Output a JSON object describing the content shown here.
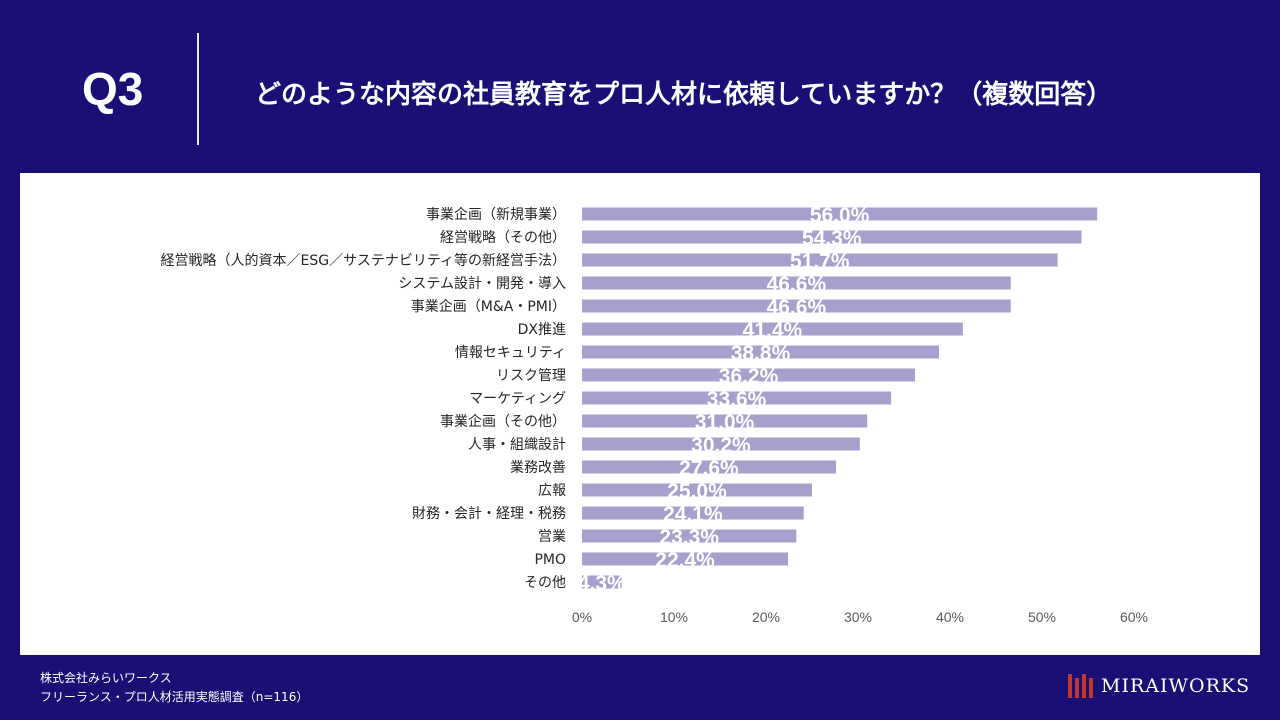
{
  "header": {
    "q_label": "Q3",
    "question": "どのような内容の社員教育をプロ人材に依頼していますか？（複数回答）"
  },
  "footer": {
    "company": "株式会社みらいワークス",
    "survey": "フリーランス・プロ人材活用実態調査（n=116）"
  },
  "logo": {
    "text": "MIRAIWORKS"
  },
  "colors": {
    "background": "#1a0f75",
    "bar": "#a6a0cd",
    "label": "#ffffff",
    "tick": "#595959",
    "category": "#262626",
    "logo_mark": "#c0392b"
  },
  "chart_data": {
    "type": "bar",
    "orientation": "horizontal",
    "title": "",
    "categories": [
      "事業企画（新規事業）",
      "経営戦略（その他）",
      "経営戦略（人的資本／ESG／サステナビリティ等の新経営手法）",
      "システム設計・開発・導入",
      "事業企画（M&A・PMI）",
      "DX推進",
      "情報セキュリティ",
      "リスク管理",
      "マーケティング",
      "事業企画（その他）",
      "人事・組織設計",
      "業務改善",
      "広報",
      "財務・会計・経理・税務",
      "営業",
      "PMO",
      "その他"
    ],
    "values": [
      56.0,
      54.3,
      51.7,
      46.6,
      46.6,
      41.4,
      38.8,
      36.2,
      33.6,
      31.0,
      30.2,
      27.6,
      25.0,
      24.1,
      23.3,
      22.4,
      4.3
    ],
    "data_labels": [
      "56.0%",
      "54.3%",
      "51.7%",
      "46.6%",
      "46.6%",
      "41.4%",
      "38.8%",
      "36.2%",
      "33.6%",
      "31.0%",
      "30.2%",
      "27.6%",
      "25.0%",
      "24.1%",
      "23.3%",
      "22.4%",
      "4.3%"
    ],
    "xlim": [
      0,
      60
    ],
    "xticks": [
      0,
      10,
      20,
      30,
      40,
      50,
      60
    ],
    "xtick_labels": [
      "0%",
      "10%",
      "20%",
      "30%",
      "40%",
      "50%",
      "60%"
    ],
    "xlabel": "",
    "ylabel": "",
    "grid": false,
    "legend": "none"
  }
}
